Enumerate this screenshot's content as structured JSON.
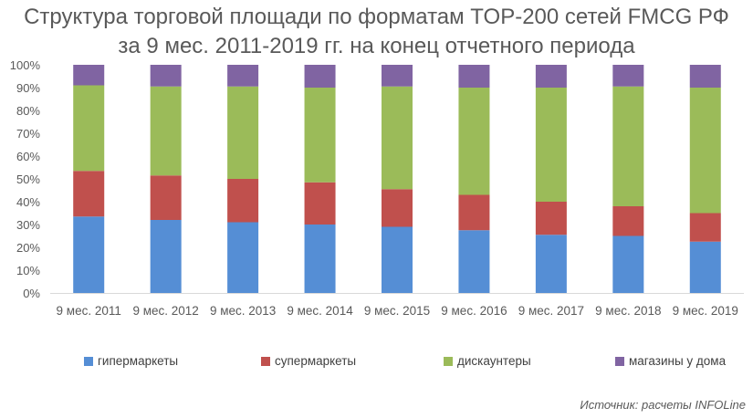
{
  "chart_data": {
    "type": "bar",
    "stacked": true,
    "percent_scale": true,
    "title": "Структура торговой площади по форматам TOP-200 сетей FMCG РФ",
    "subtitle": "за 9 мес. 2011-2019 гг. на конец отчетного периода",
    "categories": [
      "9 мес. 2011",
      "9 мес. 2012",
      "9 мес. 2013",
      "9 мес. 2014",
      "9 мес. 2015",
      "9 мес. 2016",
      "9 мес. 2017",
      "9 мес. 2018",
      "9 мес. 2019"
    ],
    "series": [
      {
        "name": "гипермаркеты",
        "color": "#558ED5",
        "values": [
          33.5,
          32.0,
          31.0,
          30.0,
          29.0,
          27.5,
          25.5,
          25.0,
          22.5
        ]
      },
      {
        "name": "супермаркеты",
        "color": "#C0504D",
        "values": [
          20.0,
          19.5,
          19.0,
          18.5,
          16.5,
          15.5,
          14.5,
          13.0,
          12.5
        ]
      },
      {
        "name": "дискаунтеры",
        "color": "#9BBB59",
        "values": [
          37.5,
          39.0,
          40.5,
          41.5,
          45.0,
          47.0,
          50.0,
          52.5,
          55.0
        ]
      },
      {
        "name": "магазины у дома",
        "color": "#8064A2",
        "values": [
          9.0,
          9.5,
          9.5,
          10.0,
          9.5,
          10.0,
          10.0,
          9.5,
          10.0
        ]
      }
    ],
    "yticks": [
      "0%",
      "10%",
      "20%",
      "30%",
      "40%",
      "50%",
      "60%",
      "70%",
      "80%",
      "90%",
      "100%"
    ],
    "ylim": [
      0,
      100
    ],
    "grid": false,
    "legend_position": "bottom",
    "source": "Источник: расчеты INFOLine"
  }
}
